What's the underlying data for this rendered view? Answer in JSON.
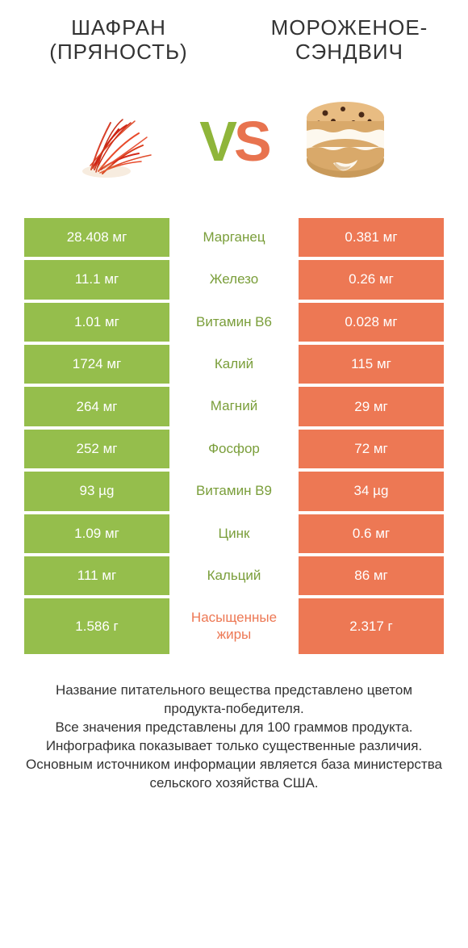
{
  "colors": {
    "left_bg": "#95be4c",
    "right_bg": "#ed7854",
    "left_text": "#7a9e3a",
    "right_text": "#ed7854",
    "neutral_text": "#555555"
  },
  "titles": {
    "left_line1": "ШАФРАН",
    "left_line2": "(ПРЯНОСТЬ)",
    "right_line1": "МОРОЖЕНОЕ-",
    "right_line2": "СЭНДВИЧ"
  },
  "vs": {
    "v": "V",
    "s": "S"
  },
  "rows": [
    {
      "left": "28.408 мг",
      "mid": "Марганец",
      "right": "0.381 мг",
      "winner": "left"
    },
    {
      "left": "11.1 мг",
      "mid": "Железо",
      "right": "0.26 мг",
      "winner": "left"
    },
    {
      "left": "1.01 мг",
      "mid": "Витамин B6",
      "right": "0.028 мг",
      "winner": "left"
    },
    {
      "left": "1724 мг",
      "mid": "Калий",
      "right": "115 мг",
      "winner": "left"
    },
    {
      "left": "264 мг",
      "mid": "Магний",
      "right": "29 мг",
      "winner": "left"
    },
    {
      "left": "252 мг",
      "mid": "Фосфор",
      "right": "72 мг",
      "winner": "left"
    },
    {
      "left": "93 µg",
      "mid": "Витамин B9",
      "right": "34 µg",
      "winner": "left"
    },
    {
      "left": "1.09 мг",
      "mid": "Цинк",
      "right": "0.6 мг",
      "winner": "left"
    },
    {
      "left": "111 мг",
      "mid": "Кальций",
      "right": "86 мг",
      "winner": "left"
    },
    {
      "left": "1.586 г",
      "mid": "Насыщенные жиры",
      "right": "2.317 г",
      "winner": "right"
    }
  ],
  "footer": {
    "l1": "Название питательного вещества представлено цветом продукта-победителя.",
    "l2": "Все значения представлены для 100 граммов продукта.",
    "l3": "Инфографика показывает только существенные различия.",
    "l4": "Основным источником информации является база министерства сельского хозяйства США."
  },
  "typography": {
    "title_fontsize": 26,
    "value_fontsize": 17,
    "footer_fontsize": 17,
    "vs_fontsize": 70
  }
}
